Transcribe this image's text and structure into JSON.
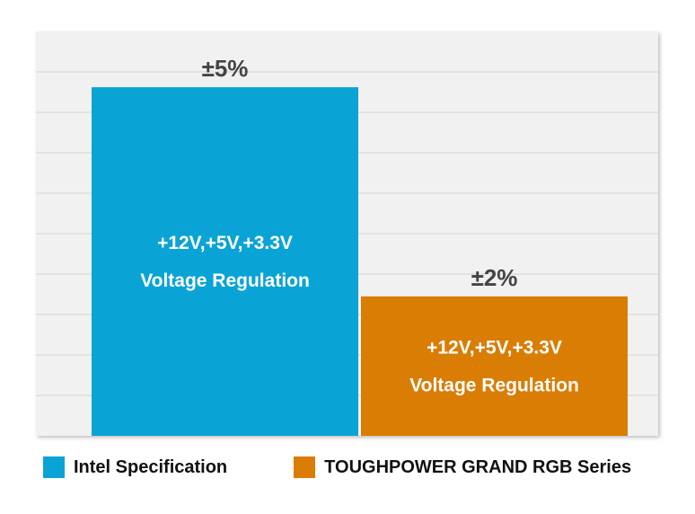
{
  "chart_data": {
    "type": "bar",
    "categories": [
      "Intel Specification",
      "TOUGHPOWER GRAND RGB Series"
    ],
    "values": [
      5,
      2
    ],
    "value_labels": [
      "±5%",
      "±2%"
    ],
    "bar_text": [
      [
        "+12V,+5V,+3.3V",
        "Voltage Regulation"
      ],
      [
        "+12V,+5V,+3.3V",
        "Voltage Regulation"
      ]
    ],
    "colors": [
      "#0aa3d6",
      "#d97d05"
    ],
    "plot_background": "#f1f1f1",
    "grid": true,
    "legend_position": "bottom",
    "ylim": [
      0,
      5.8
    ]
  },
  "legend": {
    "items": [
      {
        "label": "Intel Specification",
        "color": "#0aa3d6"
      },
      {
        "label": "TOUGHPOWER GRAND RGB Series",
        "color": "#d97d05"
      }
    ]
  }
}
